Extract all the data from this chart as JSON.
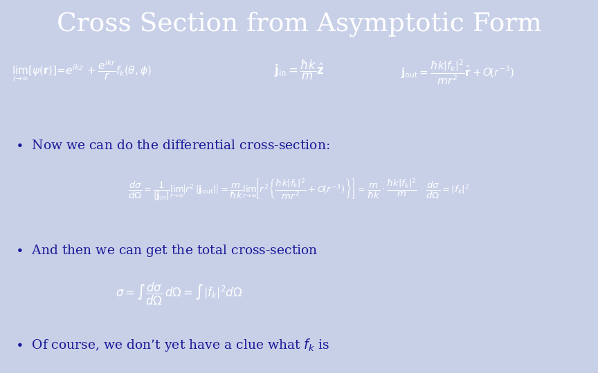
{
  "title": "Cross Section from Asymptotic Form",
  "title_bg_color": "#3333BB",
  "bg_color": "#C8D0E8",
  "text_dark": "#1A1A99",
  "text_white": "#FFFFFF",
  "eq_psi": "$\\lim_{r \\to \\infty}\\left[\\psi \\left(\\mathbf{r}\\right)\\right] = e^{ikz} + \\dfrac{e^{ikr}}{r}f_k(\\theta,\\phi)$",
  "eq_jin": "$\\mathbf{j}_{\\mathrm{in}} = \\dfrac{\\hbar k}{m}\\hat{\\mathbf{z}}$",
  "eq_jout": "$\\mathbf{j}_{\\mathrm{out}} = \\dfrac{\\hbar k\\left|f_k\\right|^2}{mr^2}\\hat{\\mathbf{r}} + O\\!\\left(r^{-3}\\right)$",
  "bullet1": "Now we can do the differential cross-section:",
  "eq_dsigma": "$\\dfrac{d\\sigma}{d\\Omega} = \\dfrac{1}{|\\mathbf{j}_{\\mathrm{in}}|}\\lim_{r\\to\\infty}\\!\\left[r^2|\\mathbf{j}_{\\mathrm{out}}|\\right] = \\dfrac{m}{\\hbar k}\\lim_{r\\to\\infty}\\!\\left[r^2\\!\\left\\{\\dfrac{\\hbar k|f_k|^2}{mr^2}+O\\!\\left(r^{-3}\\right)\\right\\}\\right] = \\dfrac{m}{\\hbar k}\\cdot\\dfrac{\\hbar k|f_k|^2}{m} \\quad \\dfrac{d\\sigma}{d\\Omega} = |f_k|^2$",
  "bullet2": "And then we can get the total cross-section",
  "eq_sigma": "$\\sigma = \\int\\dfrac{d\\sigma}{d\\Omega}\\,d\\Omega = \\int\\left|f_k\\right|^2 d\\Omega$",
  "bullet3": "Of course, we don’t yet have a clue what $f_k$ is"
}
